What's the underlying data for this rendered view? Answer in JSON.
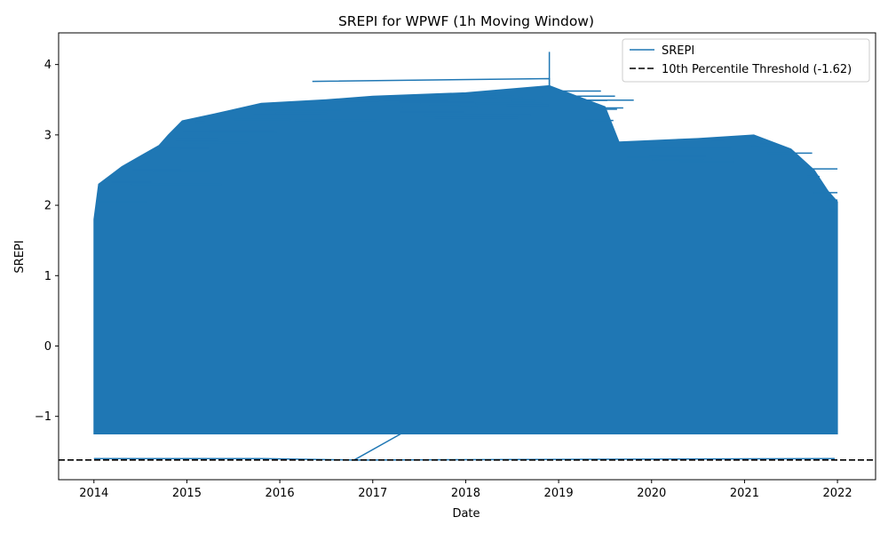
{
  "chart_data": {
    "type": "line",
    "title": "SREPI for WPWF (1h Moving Window)",
    "xlabel": "Date",
    "ylabel": "SREPI",
    "x_ticks": [
      "2014",
      "2015",
      "2016",
      "2017",
      "2018",
      "2019",
      "2020",
      "2021",
      "2022"
    ],
    "y_ticks": [
      "−1",
      "0",
      "1",
      "2",
      "3",
      "4"
    ],
    "xlim": [
      2013.62,
      2022.41
    ],
    "ylim": [
      -1.9,
      4.45
    ],
    "grid": false,
    "legend_position": "top-right",
    "series": [
      {
        "name": "SREPI",
        "color": "#1f77b4",
        "dense_band": {
          "x_start": 2014.0,
          "x_end": 2022.0,
          "y_min": -1.25,
          "upper_envelope": [
            [
              2014.0,
              1.8
            ],
            [
              2014.05,
              2.3
            ],
            [
              2014.3,
              2.55
            ],
            [
              2014.5,
              2.7
            ],
            [
              2014.7,
              2.85
            ],
            [
              2014.8,
              3.0
            ],
            [
              2014.95,
              3.2
            ],
            [
              2015.3,
              3.3
            ],
            [
              2015.8,
              3.45
            ],
            [
              2016.5,
              3.5
            ],
            [
              2017.0,
              3.55
            ],
            [
              2018.0,
              3.6
            ],
            [
              2018.9,
              3.7
            ],
            [
              2019.5,
              3.4
            ],
            [
              2019.65,
              2.9
            ],
            [
              2020.5,
              2.95
            ],
            [
              2021.1,
              3.0
            ],
            [
              2021.5,
              2.8
            ],
            [
              2021.75,
              2.5
            ],
            [
              2021.9,
              2.2
            ],
            [
              2022.0,
              2.05
            ]
          ]
        },
        "peak": {
          "x": 2018.9,
          "y": 4.18
        },
        "outliers": [
          [
            2014.0,
            -1.6
          ],
          [
            2015.8,
            -1.6
          ],
          [
            2016.8,
            -1.62
          ],
          [
            2017.3,
            -1.25
          ],
          [
            2018.9,
            -1.61
          ],
          [
            2021.97,
            -1.6
          ]
        ]
      }
    ],
    "threshold": {
      "name": "10th Percentile Threshold (-1.62)",
      "value": -1.62,
      "color": "#000000",
      "style": "dashed"
    }
  }
}
